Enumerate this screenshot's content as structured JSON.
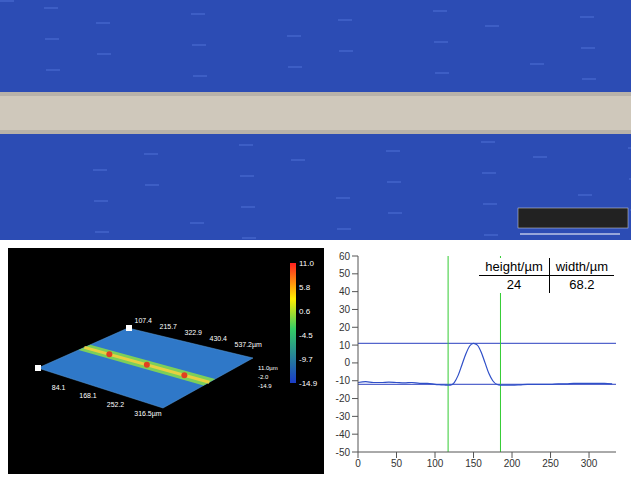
{
  "micrograph": {
    "background_color": "#2c4cb4",
    "line_color": "#cfc8bb"
  },
  "surface_3d": {
    "colorbar_labels": [
      "11.0",
      "5.8",
      "0.6",
      "-4.5",
      "-9.7",
      "-14.9"
    ],
    "back_edge_labels": [
      "107.4",
      "215.7",
      "322.9",
      "430.4",
      "537.2µm"
    ],
    "height_labels": [
      "11.0µm",
      "-2.0",
      "-14.9"
    ],
    "front_edge_labels": [
      "316.5µm",
      "252.2",
      "168.1",
      "84.1"
    ]
  },
  "chart_data": {
    "type": "line",
    "x": [
      0,
      10,
      20,
      30,
      40,
      50,
      60,
      70,
      80,
      90,
      100,
      110,
      115,
      120,
      125,
      130,
      135,
      140,
      145,
      150,
      155,
      160,
      165,
      170,
      175,
      180,
      185,
      190,
      200,
      210,
      220,
      230,
      240,
      250,
      260,
      270,
      280,
      290,
      300,
      310,
      320,
      330
    ],
    "values": [
      -11,
      -10.5,
      -11,
      -11,
      -10.8,
      -11,
      -11.2,
      -11,
      -11.5,
      -11.5,
      -12,
      -12.3,
      -12.5,
      -12.5,
      -11,
      -7,
      -1,
      5,
      9.5,
      11,
      10,
      6,
      0,
      -6,
      -10,
      -12,
      -12.5,
      -12.5,
      -12.5,
      -12.3,
      -12,
      -12,
      -12,
      -12,
      -11.8,
      -11.8,
      -11.5,
      -11.5,
      -11.5,
      -11.5,
      -11.5,
      -11.8
    ],
    "color": "#2f4fc8",
    "xlim": [
      0,
      335
    ],
    "xticks": [
      0,
      50,
      100,
      150,
      200,
      250,
      300
    ],
    "ylim": [
      -50,
      60
    ],
    "yticks": [
      -50,
      -40,
      -30,
      -20,
      -10,
      0,
      10,
      20,
      30,
      40,
      50,
      60
    ],
    "grid": false,
    "hlines": [
      11,
      -12
    ],
    "hline_color": "#2a3fc0",
    "vlines": [
      117,
      185
    ],
    "vline_color": "#33cc33",
    "table": {
      "headers": [
        "height/µm",
        "width/µm"
      ],
      "rows": [
        [
          24,
          68.2
        ]
      ]
    }
  }
}
